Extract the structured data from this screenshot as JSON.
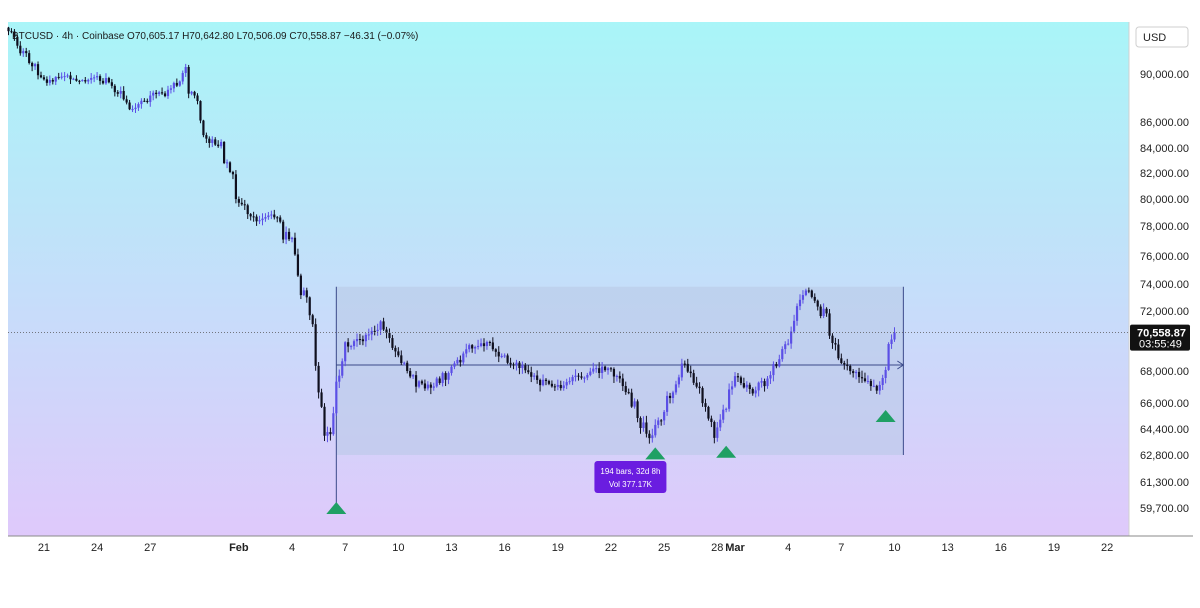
{
  "chart_data": {
    "type": "candlestick",
    "header": {
      "symbol": "BTCUSD",
      "interval": "4h",
      "exchange": "Coinbase",
      "open": "O70,605.17",
      "high": "H70,642.80",
      "low": "L70,506.09",
      "close": "C70,558.87",
      "change": "−46.31 (−0.07%)"
    },
    "currency": "USD",
    "y_axis_labels": [
      "90,000.00",
      "86,000.00",
      "84,000.00",
      "82,000.00",
      "80,000.00",
      "78,000.00",
      "76,000.00",
      "74,000.00",
      "72,000.00",
      "68,000.00",
      "66,000.00",
      "64,400.00",
      "62,800.00",
      "61,300.00",
      "59,700.00"
    ],
    "x_axis_labels": [
      "21",
      "24",
      "27",
      "Feb",
      "4",
      "7",
      "10",
      "13",
      "16",
      "19",
      "22",
      "25",
      "28",
      "Mar",
      "4",
      "7",
      "10",
      "13",
      "16",
      "19",
      "22"
    ],
    "last_price": "70,558.87",
    "countdown": "03:55:49",
    "price_path": [
      {
        "date": "Jan 19",
        "price": 93500
      },
      {
        "date": "Jan 20",
        "price": 91500
      },
      {
        "date": "Jan 21",
        "price": 89300
      },
      {
        "date": "Jan 22",
        "price": 89800
      },
      {
        "date": "Jan 23",
        "price": 89500
      },
      {
        "date": "Jan 24",
        "price": 89700
      },
      {
        "date": "Jan 25",
        "price": 89000
      },
      {
        "date": "Jan 26",
        "price": 87000
      },
      {
        "date": "Jan 27",
        "price": 88200
      },
      {
        "date": "Jan 28",
        "price": 88400
      },
      {
        "date": "Jan 29",
        "price": 90200
      },
      {
        "date": "Jan 30",
        "price": 85000
      },
      {
        "date": "Jan 31",
        "price": 84000
      },
      {
        "date": "Feb 1",
        "price": 80000
      },
      {
        "date": "Feb 2",
        "price": 78500
      },
      {
        "date": "Feb 3",
        "price": 78800
      },
      {
        "date": "Feb 4",
        "price": 76500
      },
      {
        "date": "Feb 5",
        "price": 71500
      },
      {
        "date": "Feb 6",
        "price": 64000
      },
      {
        "date": "Feb 7",
        "price": 69800
      },
      {
        "date": "Feb 8",
        "price": 70200
      },
      {
        "date": "Feb 9",
        "price": 71000
      },
      {
        "date": "Feb 10",
        "price": 69200
      },
      {
        "date": "Feb 11",
        "price": 67200
      },
      {
        "date": "Feb 12",
        "price": 67000
      },
      {
        "date": "Feb 13",
        "price": 68200
      },
      {
        "date": "Feb 14",
        "price": 69500
      },
      {
        "date": "Feb 15",
        "price": 70000
      },
      {
        "date": "Feb 16",
        "price": 68800
      },
      {
        "date": "Feb 17",
        "price": 68200
      },
      {
        "date": "Feb 18",
        "price": 67300
      },
      {
        "date": "Feb 19",
        "price": 67000
      },
      {
        "date": "Feb 20",
        "price": 67500
      },
      {
        "date": "Feb 21",
        "price": 68000
      },
      {
        "date": "Feb 22",
        "price": 68200
      },
      {
        "date": "Feb 23",
        "price": 66400
      },
      {
        "date": "Feb 24",
        "price": 63800
      },
      {
        "date": "Feb 25",
        "price": 65200
      },
      {
        "date": "Feb 26",
        "price": 68400
      },
      {
        "date": "Feb 27",
        "price": 67000
      },
      {
        "date": "Feb 28",
        "price": 64000
      },
      {
        "date": "Mar 1",
        "price": 67500
      },
      {
        "date": "Mar 2",
        "price": 66800
      },
      {
        "date": "Mar 3",
        "price": 67600
      },
      {
        "date": "Mar 4",
        "price": 69800
      },
      {
        "date": "Mar 5",
        "price": 73500
      },
      {
        "date": "Mar 6",
        "price": 71800
      },
      {
        "date": "Mar 7",
        "price": 68500
      },
      {
        "date": "Mar 8",
        "price": 67600
      },
      {
        "date": "Mar 9",
        "price": 66900
      },
      {
        "date": "Mar 10",
        "price": 70559
      }
    ],
    "range_box": {
      "start": "Feb 6",
      "end": "Mar 10",
      "high": 73800,
      "low": 62800,
      "mid": 68400,
      "label_line1": "194 bars, 32d 8h",
      "label_line2": "Vol 377.17K"
    },
    "markers": [
      {
        "date": "Feb 6",
        "price": 59700
      },
      {
        "date": "Feb 24",
        "price": 62900
      },
      {
        "date": "Feb 28",
        "price": 63000
      },
      {
        "date": "Mar 9",
        "price": 65200
      }
    ],
    "colors": {
      "up_candle": "#5b4fe6",
      "down_candle": "#0f0f1e",
      "marker": "#1fa064",
      "range_box": "#b8c8e6",
      "label_bg": "#6a1de0",
      "background_top": "#a9f5f8",
      "background_bottom": "#dfc9fb",
      "price_tag": "#121212"
    }
  }
}
